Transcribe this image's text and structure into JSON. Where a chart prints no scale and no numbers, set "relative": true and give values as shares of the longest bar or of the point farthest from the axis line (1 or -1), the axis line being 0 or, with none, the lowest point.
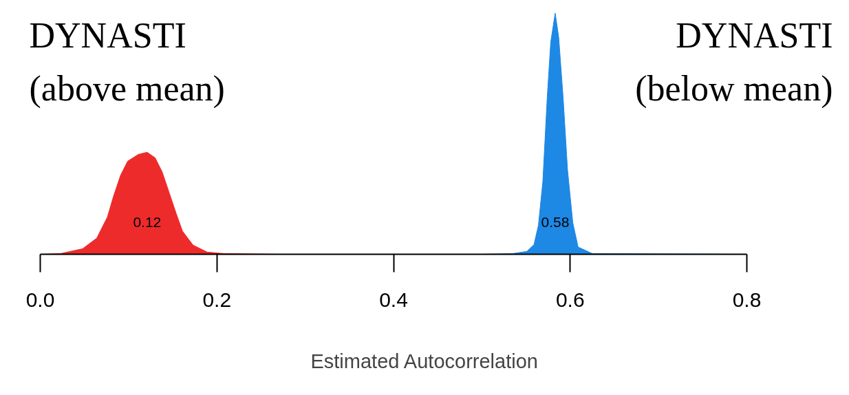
{
  "chart_data": {
    "type": "area",
    "relative": true,
    "xlabel": "Estimated Autocorrelation",
    "xlim": [
      0,
      0.8
    ],
    "xticks": [
      {
        "value": 0,
        "label": "0.0"
      },
      {
        "value": 0.2,
        "label": "0.2"
      },
      {
        "value": 0.4,
        "label": "0.4"
      },
      {
        "value": 0.6,
        "label": "0.6"
      },
      {
        "value": 0.8,
        "label": "0.8"
      }
    ],
    "grid": false,
    "series": [
      {
        "name": "DYNASTI (above mean)",
        "color": "#ee2b2b",
        "x": [
          0,
          0.023,
          0.048,
          0.064,
          0.076,
          0.083,
          0.091,
          0.099,
          0.111,
          0.121,
          0.13,
          0.138,
          0.146,
          0.154,
          0.161,
          0.173,
          0.189,
          0.208,
          0.27
        ],
        "values": [
          0,
          0.003,
          0.023,
          0.067,
          0.154,
          0.241,
          0.328,
          0.386,
          0.414,
          0.423,
          0.4,
          0.342,
          0.255,
          0.168,
          0.096,
          0.038,
          0.009,
          0.003,
          0
        ]
      },
      {
        "name": "DYNASTI (below mean)",
        "color": "#1e88e5",
        "x": [
          0.5,
          0.535,
          0.551,
          0.559,
          0.564,
          0.569,
          0.574,
          0.578,
          0.583,
          0.587,
          0.592,
          0.597,
          0.603,
          0.609,
          0.625,
          0.8
        ],
        "values": [
          0,
          0.003,
          0.012,
          0.04,
          0.12,
          0.3,
          0.65,
          0.88,
          1.0,
          0.9,
          0.65,
          0.35,
          0.13,
          0.03,
          0.003,
          0
        ]
      }
    ],
    "annotations": [
      "0.12",
      "0.58"
    ]
  }
}
